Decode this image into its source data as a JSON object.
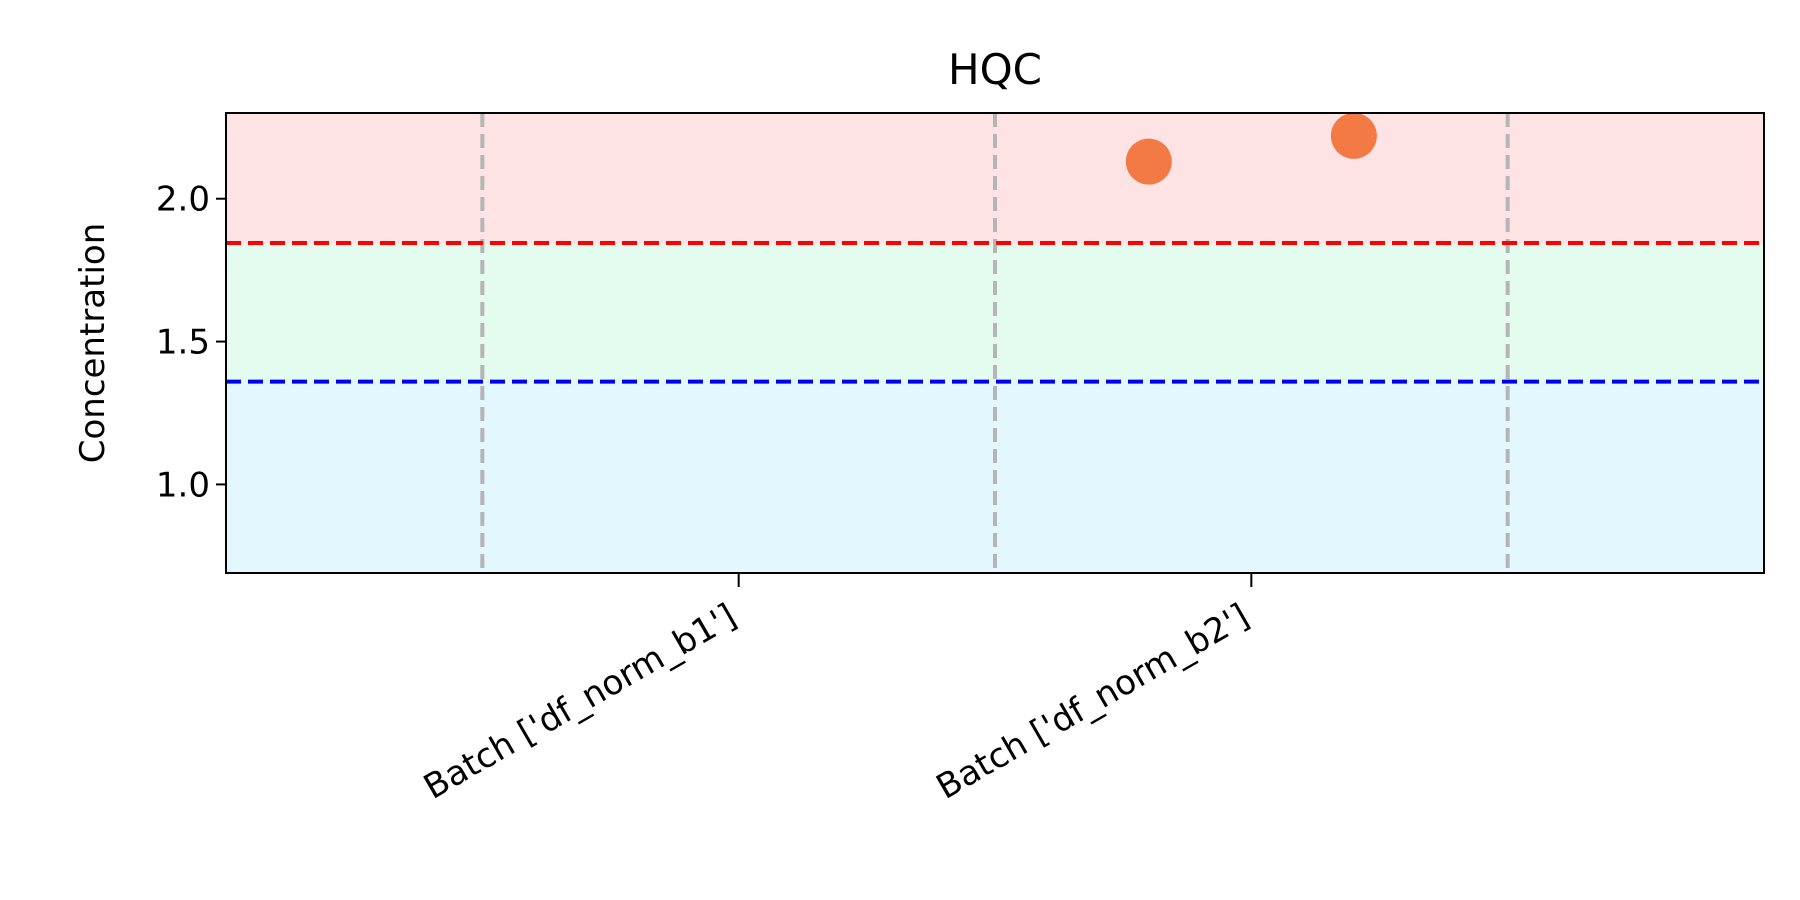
{
  "chart_data": {
    "type": "scatter",
    "title": "HQC",
    "xlabel": "",
    "ylabel": "Concentration",
    "categories": [
      "Batch ['df_norm_b1']",
      "Batch ['df_norm_b2']"
    ],
    "yticks": [
      "1.0",
      "1.5",
      "2.0"
    ],
    "ylim": [
      0.69,
      2.3
    ],
    "xlim": [
      -0.5,
      2.5
    ],
    "bands": [
      {
        "from": 0.69,
        "to": 1.36,
        "color": "#e3f7fe"
      },
      {
        "from": 1.36,
        "to": 1.845,
        "color": "#e3fcef"
      },
      {
        "from": 1.845,
        "to": 2.3,
        "color": "#fee3e5"
      }
    ],
    "reference_lines": [
      {
        "y": 1.845,
        "color": "#ff0000"
      },
      {
        "y": 1.36,
        "color": "#0000ee"
      }
    ],
    "batch_separators": [
      0,
      1,
      2
    ],
    "points": [
      {
        "x": 1.3,
        "y": 2.13
      },
      {
        "x": 1.7,
        "y": 2.22
      }
    ],
    "point_color": "#f47a45",
    "grid": false,
    "legend": "none"
  }
}
